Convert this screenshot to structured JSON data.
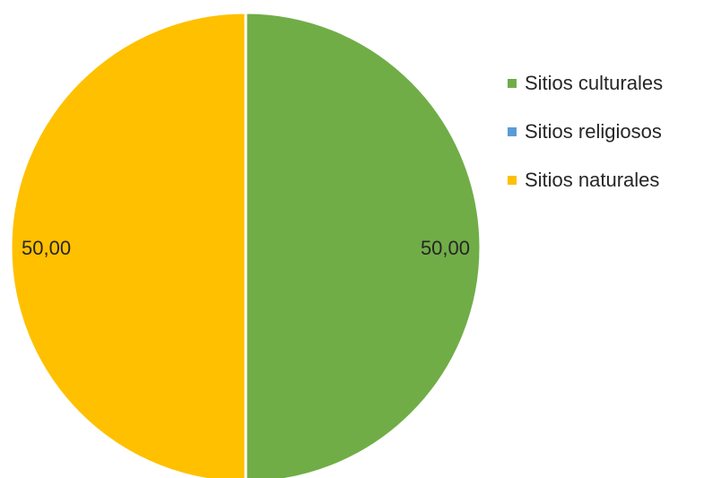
{
  "chart_data": {
    "type": "pie",
    "title": "",
    "slices": [
      {
        "name": "Sitios culturales",
        "value": 50,
        "label": "50,00",
        "color": "#70AD47"
      },
      {
        "name": "Sitios religiosos",
        "value": 0,
        "label": "",
        "color": "#5B9BD5"
      },
      {
        "name": "Sitios naturales",
        "value": 50,
        "label": "50,00",
        "color": "#FFC000"
      }
    ],
    "legend_position": "right"
  }
}
